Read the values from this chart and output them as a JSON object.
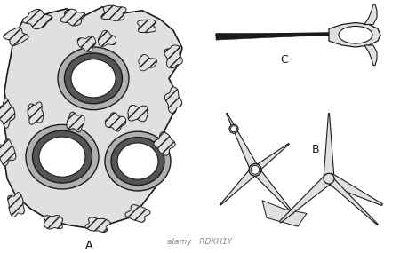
{
  "bg_color": "#ffffff",
  "ink_color": "#1a1a1a",
  "gray_fill": "#c8c8c8",
  "light_gray": "#e0e0e0",
  "hatch_gray": "#b0b0b0",
  "label_A": "A",
  "label_B": "B",
  "label_C": "C",
  "watermark": "alamy · RDKH1Y"
}
